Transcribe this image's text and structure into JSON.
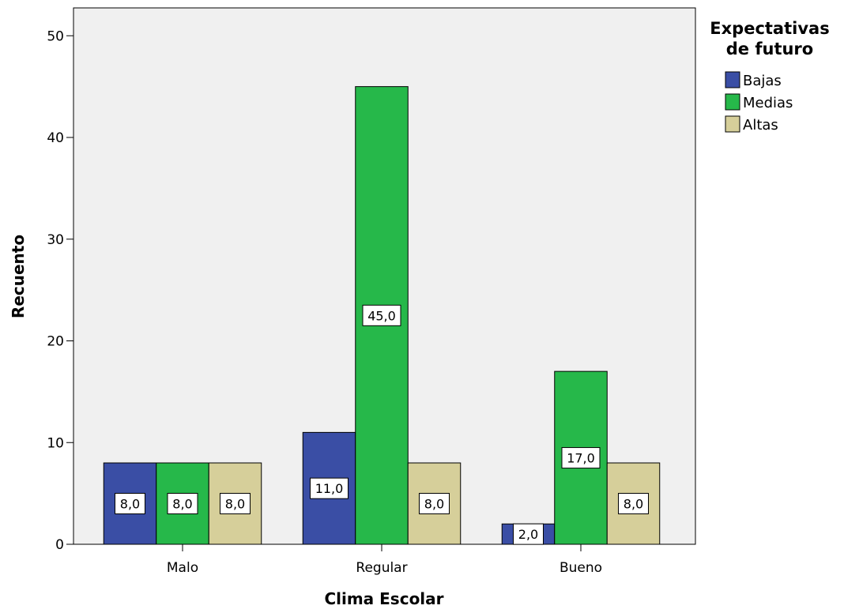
{
  "chart_data": {
    "type": "bar",
    "title": "",
    "xlabel": "Clima Escolar",
    "ylabel": "Recuento",
    "categories": [
      "Malo",
      "Regular",
      "Bueno"
    ],
    "series": [
      {
        "name": "Bajas",
        "values": [
          8,
          11,
          2
        ],
        "labels": [
          "8,0",
          "11,0",
          "2,0"
        ],
        "color": "#3a4ea5"
      },
      {
        "name": "Medias",
        "values": [
          8,
          45,
          17
        ],
        "labels": [
          "8,0",
          "45,0",
          "17,0"
        ],
        "color": "#26b84a"
      },
      {
        "name": "Altas",
        "values": [
          8,
          8,
          8
        ],
        "labels": [
          "8,0",
          "8,0",
          "8,0"
        ],
        "color": "#d6cf9a"
      }
    ],
    "ylim": [
      0,
      50
    ],
    "yticks": [
      {
        "value": 0,
        "label": "0"
      },
      {
        "value": 10,
        "label": "10"
      },
      {
        "value": 20,
        "label": "20"
      },
      {
        "value": 30,
        "label": "30"
      },
      {
        "value": 40,
        "label": "40"
      },
      {
        "value": 50,
        "label": "50"
      }
    ],
    "grid": false,
    "legend": {
      "title": "Expectativas de futuro",
      "title_lines": [
        "Expectativas",
        "de futuro"
      ],
      "placement": "right"
    },
    "plot_background": "#f0f0f0"
  }
}
